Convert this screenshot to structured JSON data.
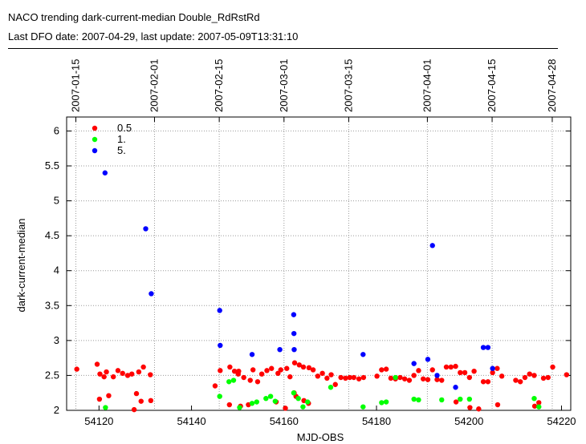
{
  "header": {
    "title": "NACO trending dark-current-median Double_RdRstRd",
    "subtitle": "Last DFO date: 2007-04-29, last update: 2007-05-09T13:31:10"
  },
  "chart_data": {
    "type": "scatter",
    "xlabel": "MJD-OBS",
    "ylabel": "dark-current-median",
    "xlim": [
      54113,
      54222
    ],
    "ylim": [
      2,
      6.2
    ],
    "xticks": [
      54120,
      54140,
      54160,
      54180,
      54200,
      54220
    ],
    "yticks": [
      2,
      2.5,
      3,
      3.5,
      4,
      4.5,
      5,
      5.5,
      6
    ],
    "ytick_labels": [
      "2",
      "2.5",
      "3",
      "3.5",
      "4",
      "4.5",
      "5",
      "5.5",
      "6"
    ],
    "top_axis": {
      "labels": [
        "2007-01-15",
        "2007-02-01",
        "2007-02-15",
        "2007-03-01",
        "2007-03-15",
        "2007-04-01",
        "2007-04-15",
        "2007-04-28"
      ],
      "mjd": [
        54115,
        54132,
        54146,
        54160,
        54174,
        54191,
        54205,
        54218
      ]
    },
    "grid": true,
    "legend_position": "top-left",
    "series": [
      {
        "name": "0.5",
        "color": "#ff0000",
        "points": [
          [
            54115.2,
            2.59
          ],
          [
            54119.6,
            2.66
          ],
          [
            54120.1,
            2.16
          ],
          [
            54120.2,
            2.52
          ],
          [
            54121.1,
            2.48
          ],
          [
            54121.6,
            2.55
          ],
          [
            54122.1,
            2.21
          ],
          [
            54123.1,
            2.48
          ],
          [
            54124.1,
            2.57
          ],
          [
            54125.1,
            2.53
          ],
          [
            54126.2,
            2.5
          ],
          [
            54127.1,
            2.52
          ],
          [
            54127.6,
            2.01
          ],
          [
            54128.1,
            2.24
          ],
          [
            54128.6,
            2.55
          ],
          [
            54129.1,
            2.13
          ],
          [
            54129.6,
            2.62
          ],
          [
            54131.1,
            2.51
          ],
          [
            54131.2,
            2.14
          ],
          [
            54145.1,
            2.35
          ],
          [
            54146.2,
            2.57
          ],
          [
            54148.2,
            2.08
          ],
          [
            54148.3,
            2.62
          ],
          [
            54149.3,
            2.56
          ],
          [
            54150.1,
            2.52
          ],
          [
            54150.2,
            2.56
          ],
          [
            54150.6,
            2.06
          ],
          [
            54151.3,
            2.47
          ],
          [
            54152.3,
            2.08
          ],
          [
            54152.7,
            2.43
          ],
          [
            54153.3,
            2.58
          ],
          [
            54154.3,
            2.41
          ],
          [
            54155.2,
            2.52
          ],
          [
            54156.3,
            2.57
          ],
          [
            54157.3,
            2.6
          ],
          [
            54158.3,
            2.12
          ],
          [
            54158.7,
            2.53
          ],
          [
            54159.3,
            2.58
          ],
          [
            54160.3,
            2.03
          ],
          [
            54160.6,
            2.6
          ],
          [
            54161.3,
            2.48
          ],
          [
            54162.2,
            2.25
          ],
          [
            54162.3,
            2.68
          ],
          [
            54162.6,
            2.2
          ],
          [
            54163.3,
            2.65
          ],
          [
            54164.2,
            2.62
          ],
          [
            54164.3,
            2.14
          ],
          [
            54165.3,
            2.1
          ],
          [
            54165.4,
            2.61
          ],
          [
            54166.3,
            2.58
          ],
          [
            54167.3,
            2.49
          ],
          [
            54168.3,
            2.53
          ],
          [
            54169.3,
            2.46
          ],
          [
            54170.2,
            2.51
          ],
          [
            54171.1,
            2.37
          ],
          [
            54172.3,
            2.47
          ],
          [
            54173.3,
            2.46
          ],
          [
            54174.2,
            2.47
          ],
          [
            54175.1,
            2.47
          ],
          [
            54176.2,
            2.45
          ],
          [
            54177.2,
            2.47
          ],
          [
            54180.1,
            2.49
          ],
          [
            54181.1,
            2.58
          ],
          [
            54182.1,
            2.59
          ],
          [
            54183.1,
            2.46
          ],
          [
            54184.1,
            2.45
          ],
          [
            54185.1,
            2.47
          ],
          [
            54186.1,
            2.45
          ],
          [
            54187.1,
            2.43
          ],
          [
            54188.1,
            2.5
          ],
          [
            54189.1,
            2.57
          ],
          [
            54190.1,
            2.45
          ],
          [
            54191.1,
            2.44
          ],
          [
            54192.1,
            2.58
          ],
          [
            54193.1,
            2.44
          ],
          [
            54194.1,
            2.43
          ],
          [
            54195.1,
            2.62
          ],
          [
            54196.1,
            2.62
          ],
          [
            54197.1,
            2.63
          ],
          [
            54197.2,
            2.12
          ],
          [
            54198.1,
            2.54
          ],
          [
            54199.1,
            2.54
          ],
          [
            54200.1,
            2.47
          ],
          [
            54200.2,
            2.04
          ],
          [
            54201.1,
            2.56
          ],
          [
            54202.1,
            2.02
          ],
          [
            54203.1,
            2.41
          ],
          [
            54204.1,
            2.41
          ],
          [
            54205.1,
            2.54
          ],
          [
            54206.1,
            2.6
          ],
          [
            54206.2,
            2.08
          ],
          [
            54207.1,
            2.49
          ],
          [
            54210.1,
            2.43
          ],
          [
            54211.1,
            2.41
          ],
          [
            54212.1,
            2.47
          ],
          [
            54213.1,
            2.52
          ],
          [
            54214.1,
            2.5
          ],
          [
            54214.2,
            2.06
          ],
          [
            54215.1,
            2.11
          ],
          [
            54216.1,
            2.46
          ],
          [
            54217.1,
            2.47
          ],
          [
            54218.1,
            2.62
          ],
          [
            54221.1,
            2.51
          ]
        ]
      },
      {
        "name": "1.",
        "color": "#00ff00",
        "points": [
          [
            54121.4,
            2.04
          ],
          [
            54146.1,
            2.2
          ],
          [
            54148.1,
            2.41
          ],
          [
            54149.1,
            2.43
          ],
          [
            54150.4,
            2.04
          ],
          [
            54153.1,
            2.1
          ],
          [
            54154.1,
            2.12
          ],
          [
            54156.1,
            2.17
          ],
          [
            54157.1,
            2.2
          ],
          [
            54158.1,
            2.13
          ],
          [
            54162.1,
            2.25
          ],
          [
            54163.1,
            2.17
          ],
          [
            54164.1,
            2.05
          ],
          [
            54165.1,
            2.12
          ],
          [
            54170.1,
            2.33
          ],
          [
            54177.1,
            2.05
          ],
          [
            54181.1,
            2.11
          ],
          [
            54182.1,
            2.12
          ],
          [
            54184.1,
            2.47
          ],
          [
            54188.1,
            2.16
          ],
          [
            54189.1,
            2.15
          ],
          [
            54194.1,
            2.15
          ],
          [
            54198.1,
            2.16
          ],
          [
            54200.1,
            2.16
          ],
          [
            54214.1,
            2.17
          ],
          [
            54215.1,
            2.05
          ]
        ]
      },
      {
        "name": "5.",
        "color": "#0000ff",
        "points": [
          [
            54121.3,
            5.4
          ],
          [
            54130.1,
            4.6
          ],
          [
            54131.3,
            3.67
          ],
          [
            54146.1,
            3.43
          ],
          [
            54146.2,
            2.93
          ],
          [
            54153.1,
            2.8
          ],
          [
            54159.1,
            2.87
          ],
          [
            54162.1,
            3.37
          ],
          [
            54162.15,
            3.1
          ],
          [
            54162.2,
            2.87
          ],
          [
            54177.1,
            2.8
          ],
          [
            54188.1,
            2.67
          ],
          [
            54191.1,
            2.73
          ],
          [
            54192.1,
            4.36
          ],
          [
            54193.1,
            2.5
          ],
          [
            54197.1,
            2.33
          ],
          [
            54203.1,
            2.9
          ],
          [
            54204.1,
            2.9
          ],
          [
            54205.1,
            2.6
          ]
        ]
      }
    ]
  }
}
